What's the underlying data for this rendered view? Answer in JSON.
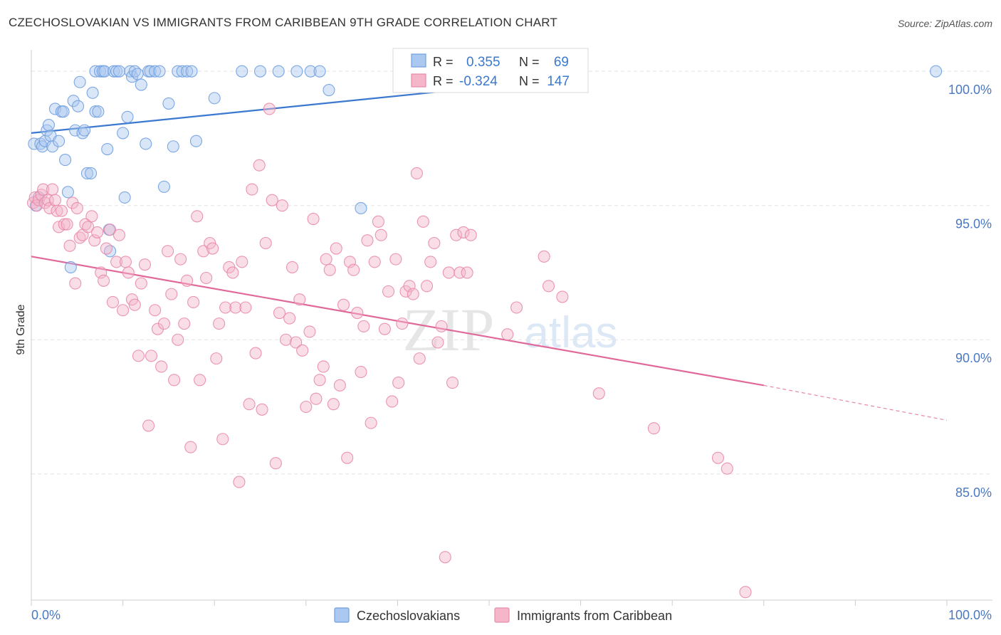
{
  "title": "CZECHOSLOVAKIAN VS IMMIGRANTS FROM CARIBBEAN 9TH GRADE CORRELATION CHART",
  "source": "Source: ZipAtlas.com",
  "watermark": {
    "zip": "ZIP",
    "atlas": "atlas"
  },
  "chart_data": {
    "type": "scatter",
    "title": "CZECHOSLOVAKIAN VS IMMIGRANTS FROM CARIBBEAN 9TH GRADE CORRELATION CHART",
    "xlabel": "",
    "ylabel": "9th Grade",
    "xlim": [
      0,
      100
    ],
    "ylim": [
      80.3,
      100.8
    ],
    "x_tick_labels": [
      {
        "value": 0,
        "label": "0.0%"
      },
      {
        "value": 100,
        "label": "100.0%"
      }
    ],
    "y_ticks": [
      {
        "value": 100,
        "label": "100.0%"
      },
      {
        "value": 95,
        "label": "95.0%"
      },
      {
        "value": 90,
        "label": "90.0%"
      },
      {
        "value": 85,
        "label": "85.0%"
      }
    ],
    "legend": {
      "position": "top-center",
      "r_label": "R =",
      "n_label": "N =",
      "entries": [
        {
          "r": "0.355",
          "n": "69"
        },
        {
          "r": "-0.324",
          "n": "147"
        }
      ]
    },
    "series": [
      {
        "name": "Czechoslovakians",
        "color": "#6f9fe0",
        "fill": "#aac8f0",
        "trend": {
          "x0": 0,
          "y0": 97.7,
          "x1": 55,
          "y1": 99.6,
          "dash_x1": 58,
          "dash_y1": 99.7,
          "color": "#3b78d0"
        },
        "points": [
          [
            0.3,
            97.3
          ],
          [
            0.5,
            95.0
          ],
          [
            0.8,
            95.3
          ],
          [
            1.0,
            97.3
          ],
          [
            1.2,
            97.2
          ],
          [
            1.5,
            97.4
          ],
          [
            1.7,
            97.8
          ],
          [
            1.9,
            98.0
          ],
          [
            2.1,
            97.6
          ],
          [
            2.3,
            97.2
          ],
          [
            2.6,
            98.6
          ],
          [
            3.0,
            97.4
          ],
          [
            3.3,
            98.5
          ],
          [
            3.5,
            98.5
          ],
          [
            3.7,
            96.7
          ],
          [
            4.0,
            95.5
          ],
          [
            4.3,
            92.7
          ],
          [
            4.6,
            98.9
          ],
          [
            4.8,
            97.8
          ],
          [
            5.1,
            98.7
          ],
          [
            5.3,
            99.6
          ],
          [
            5.6,
            97.7
          ],
          [
            5.8,
            97.8
          ],
          [
            6.1,
            96.2
          ],
          [
            6.5,
            96.2
          ],
          [
            6.7,
            99.2
          ],
          [
            7.0,
            98.5
          ],
          [
            7.3,
            98.5
          ],
          [
            7.0,
            100.0
          ],
          [
            7.5,
            100.0
          ],
          [
            7.8,
            100.0
          ],
          [
            8.0,
            100.0
          ],
          [
            8.3,
            97.1
          ],
          [
            8.5,
            94.1
          ],
          [
            8.6,
            93.3
          ],
          [
            9.0,
            100.0
          ],
          [
            9.3,
            100.0
          ],
          [
            9.6,
            100.0
          ],
          [
            10.0,
            97.7
          ],
          [
            10.2,
            95.3
          ],
          [
            10.5,
            98.3
          ],
          [
            10.8,
            100.0
          ],
          [
            11.0,
            99.8
          ],
          [
            11.3,
            100.0
          ],
          [
            11.6,
            99.9
          ],
          [
            12.0,
            99.5
          ],
          [
            12.5,
            97.3
          ],
          [
            12.8,
            100.0
          ],
          [
            13.0,
            100.0
          ],
          [
            13.5,
            100.0
          ],
          [
            14.0,
            100.0
          ],
          [
            14.5,
            95.7
          ],
          [
            15.0,
            98.8
          ],
          [
            15.5,
            97.2
          ],
          [
            16.0,
            100.0
          ],
          [
            16.5,
            100.0
          ],
          [
            17.0,
            100.0
          ],
          [
            17.5,
            100.0
          ],
          [
            18.0,
            97.4
          ],
          [
            20.0,
            99.0
          ],
          [
            23.0,
            100.0
          ],
          [
            25.0,
            100.0
          ],
          [
            27.0,
            100.0
          ],
          [
            29.0,
            100.0
          ],
          [
            30.5,
            100.0
          ],
          [
            31.5,
            100.0
          ],
          [
            32.5,
            99.3
          ],
          [
            36.0,
            94.9
          ],
          [
            98.8,
            100.0
          ]
        ]
      },
      {
        "name": "Immigrants from Caribbean",
        "color": "#e88aaa",
        "fill": "#f5b6ca",
        "trend": {
          "x0": 0,
          "y0": 93.1,
          "x1": 80,
          "y1": 88.3,
          "dash_x1": 100,
          "dash_y1": 87.0,
          "color": "#e0689a"
        },
        "points": [
          [
            0.2,
            95.1
          ],
          [
            0.4,
            95.3
          ],
          [
            0.6,
            95.0
          ],
          [
            0.8,
            95.2
          ],
          [
            1.1,
            95.4
          ],
          [
            1.3,
            95.6
          ],
          [
            1.5,
            95.1
          ],
          [
            1.8,
            95.2
          ],
          [
            2.0,
            94.9
          ],
          [
            2.3,
            95.6
          ],
          [
            2.6,
            95.2
          ],
          [
            2.8,
            94.8
          ],
          [
            3.0,
            94.2
          ],
          [
            3.3,
            94.8
          ],
          [
            3.6,
            94.3
          ],
          [
            3.9,
            94.3
          ],
          [
            4.2,
            93.5
          ],
          [
            4.5,
            95.1
          ],
          [
            4.8,
            92.1
          ],
          [
            5.0,
            94.9
          ],
          [
            5.3,
            93.8
          ],
          [
            5.6,
            93.9
          ],
          [
            5.9,
            94.3
          ],
          [
            6.2,
            94.2
          ],
          [
            6.6,
            94.6
          ],
          [
            6.9,
            93.7
          ],
          [
            7.2,
            94.0
          ],
          [
            7.6,
            92.5
          ],
          [
            7.9,
            92.2
          ],
          [
            8.2,
            93.4
          ],
          [
            8.6,
            94.1
          ],
          [
            8.9,
            91.4
          ],
          [
            9.3,
            92.9
          ],
          [
            9.6,
            93.9
          ],
          [
            10.0,
            91.1
          ],
          [
            10.3,
            92.9
          ],
          [
            10.6,
            92.5
          ],
          [
            11.0,
            91.5
          ],
          [
            11.3,
            91.3
          ],
          [
            11.7,
            89.4
          ],
          [
            12.0,
            92.1
          ],
          [
            12.4,
            92.8
          ],
          [
            12.8,
            86.8
          ],
          [
            13.1,
            89.4
          ],
          [
            13.5,
            91.1
          ],
          [
            13.8,
            90.4
          ],
          [
            14.2,
            89.0
          ],
          [
            14.5,
            90.6
          ],
          [
            14.9,
            93.3
          ],
          [
            15.3,
            91.7
          ],
          [
            15.6,
            88.5
          ],
          [
            16.0,
            90.0
          ],
          [
            16.3,
            93.0
          ],
          [
            16.7,
            90.6
          ],
          [
            17.0,
            92.2
          ],
          [
            17.4,
            86.0
          ],
          [
            17.7,
            91.4
          ],
          [
            18.1,
            94.6
          ],
          [
            18.4,
            88.5
          ],
          [
            18.8,
            93.3
          ],
          [
            19.1,
            92.3
          ],
          [
            19.5,
            93.6
          ],
          [
            19.8,
            93.4
          ],
          [
            20.2,
            89.3
          ],
          [
            20.5,
            90.6
          ],
          [
            20.9,
            86.3
          ],
          [
            21.2,
            91.2
          ],
          [
            21.6,
            92.7
          ],
          [
            22.0,
            92.5
          ],
          [
            22.3,
            91.2
          ],
          [
            22.7,
            84.7
          ],
          [
            23.0,
            92.9
          ],
          [
            23.4,
            91.2
          ],
          [
            23.8,
            87.6
          ],
          [
            24.1,
            95.6
          ],
          [
            24.5,
            89.5
          ],
          [
            24.9,
            96.5
          ],
          [
            25.2,
            87.4
          ],
          [
            25.6,
            93.6
          ],
          [
            26.0,
            98.6
          ],
          [
            26.3,
            95.2
          ],
          [
            26.7,
            85.4
          ],
          [
            27.1,
            91.0
          ],
          [
            27.4,
            95.0
          ],
          [
            27.8,
            90.0
          ],
          [
            28.2,
            90.8
          ],
          [
            28.5,
            92.7
          ],
          [
            28.9,
            89.9
          ],
          [
            29.3,
            91.5
          ],
          [
            29.6,
            89.6
          ],
          [
            30.0,
            87.5
          ],
          [
            30.4,
            90.3
          ],
          [
            30.8,
            94.5
          ],
          [
            31.1,
            87.8
          ],
          [
            31.5,
            88.5
          ],
          [
            31.9,
            89.0
          ],
          [
            32.2,
            93.0
          ],
          [
            32.6,
            92.6
          ],
          [
            33.0,
            87.6
          ],
          [
            33.3,
            93.4
          ],
          [
            33.7,
            88.3
          ],
          [
            34.1,
            91.3
          ],
          [
            34.5,
            85.6
          ],
          [
            34.8,
            92.9
          ],
          [
            35.2,
            92.6
          ],
          [
            35.6,
            91.0
          ],
          [
            36.0,
            88.8
          ],
          [
            36.3,
            90.5
          ],
          [
            36.7,
            93.7
          ],
          [
            37.1,
            86.9
          ],
          [
            37.5,
            92.9
          ],
          [
            37.9,
            94.4
          ],
          [
            38.2,
            93.9
          ],
          [
            38.6,
            90.4
          ],
          [
            39.0,
            91.8
          ],
          [
            39.4,
            87.7
          ],
          [
            39.8,
            93.0
          ],
          [
            40.1,
            88.4
          ],
          [
            40.5,
            90.6
          ],
          [
            40.9,
            91.8
          ],
          [
            41.3,
            92.0
          ],
          [
            41.7,
            91.7
          ],
          [
            42.1,
            96.2
          ],
          [
            42.4,
            89.3
          ],
          [
            42.8,
            94.4
          ],
          [
            43.2,
            92.0
          ],
          [
            43.6,
            92.9
          ],
          [
            44.0,
            93.6
          ],
          [
            44.4,
            89.9
          ],
          [
            44.8,
            90.5
          ],
          [
            45.2,
            81.9
          ],
          [
            45.6,
            92.5
          ],
          [
            46.0,
            88.4
          ],
          [
            46.4,
            93.9
          ],
          [
            46.8,
            92.5
          ],
          [
            47.2,
            94.0
          ],
          [
            47.6,
            92.5
          ],
          [
            48.0,
            93.9
          ],
          [
            52.0,
            90.2
          ],
          [
            53.0,
            91.2
          ],
          [
            55.0,
            100.0
          ],
          [
            56.5,
            92.0
          ],
          [
            56.0,
            93.1
          ],
          [
            58.0,
            91.6
          ],
          [
            62.0,
            88.0
          ],
          [
            68.0,
            86.7
          ],
          [
            75.0,
            85.6
          ],
          [
            76.0,
            85.2
          ],
          [
            78.0,
            80.6
          ]
        ]
      }
    ]
  }
}
